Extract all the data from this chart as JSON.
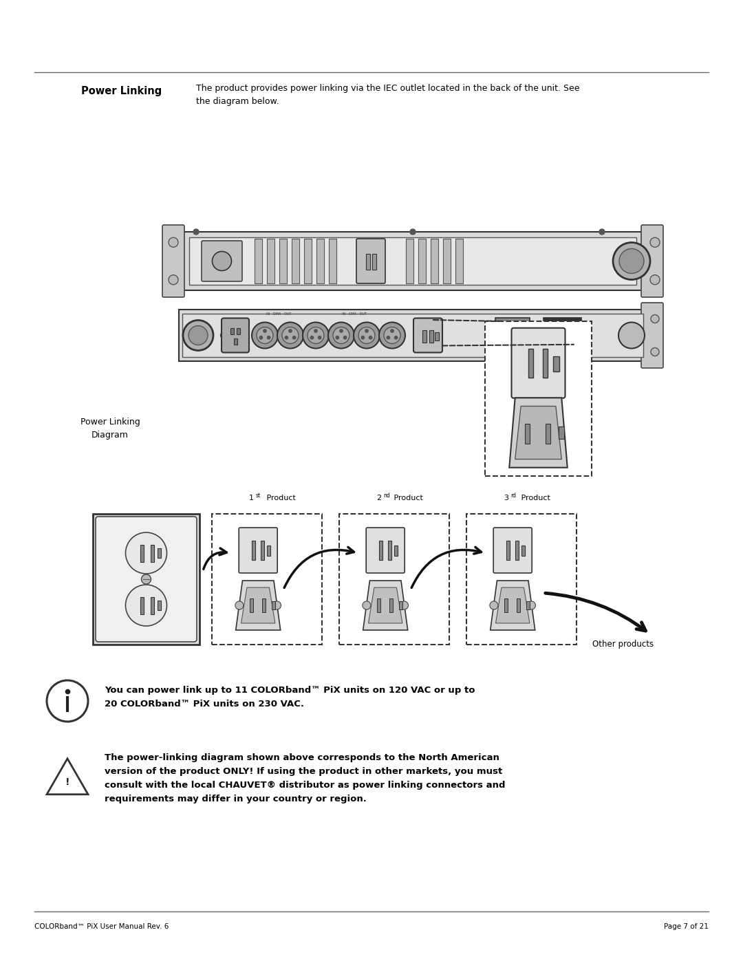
{
  "bg_color": "#ffffff",
  "text_color": "#000000",
  "page_width": 10.8,
  "page_height": 13.97,
  "header_bold": "Power Linking",
  "header_text": "The product provides power linking via the IEC outlet located in the back of the unit. See\nthe diagram below.",
  "section_label": "Power Linking\nDiagram",
  "product_labels_sup": [
    [
      "1",
      "st",
      " Product"
    ],
    [
      "2",
      "nd",
      " Product"
    ],
    [
      "3",
      "rd",
      " Product"
    ]
  ],
  "other_products_label": "Other products",
  "info_text": "You can power link up to 11 COLORband™ PiX units on 120 VAC or up to\n20 COLORband™ PiX units on 230 VAC.",
  "warning_text": "The power-linking diagram shown above corresponds to the North American\nversion of the product ONLY! If using the product in other markets, you must\nconsult with the local CHAUVET® distributor as power linking connectors and\nrequirements may differ in your country or region.",
  "footer_left": "COLORband™ PiX User Manual Rev. 6",
  "footer_right": "Page 7 of 21"
}
